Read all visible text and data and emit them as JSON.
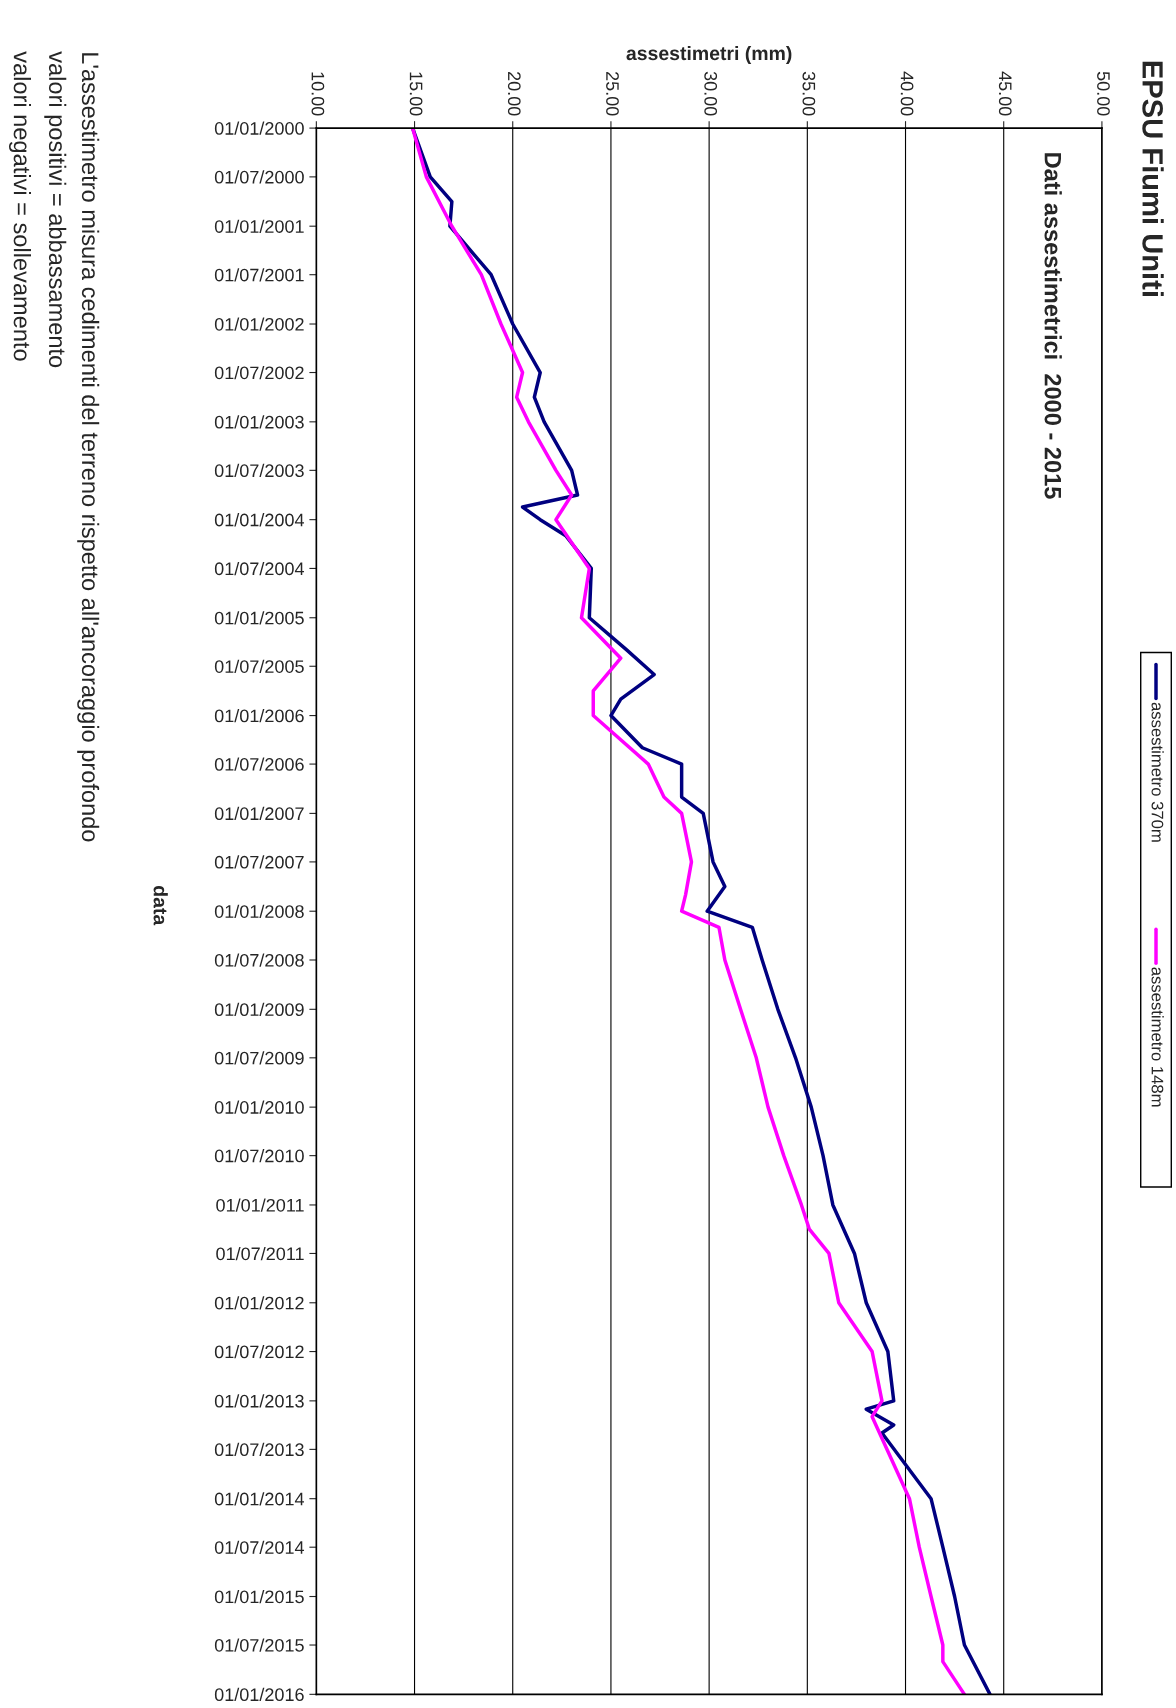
{
  "chart_data": {
    "type": "line",
    "orientation": "horizontal",
    "title": "EPSU Fiumi Uniti",
    "subtitle": "Dati assestimetrici  2000 - 2015",
    "xlabel": "assestimetri (mm)",
    "ylabel": "data",
    "annotations": [
      "L'assestimetro misura cedimenti del terreno rispetto all'ancoraggio profondo",
      "valori positivi = abbassamento",
      "valori negativi = sollevamento"
    ],
    "xlim": [
      10,
      50
    ],
    "xticks": [
      {
        "value": 10,
        "label": "10.00"
      },
      {
        "value": 15,
        "label": "15.00"
      },
      {
        "value": 20,
        "label": "20.00"
      },
      {
        "value": 25,
        "label": "25.00"
      },
      {
        "value": 30,
        "label": "30.00"
      },
      {
        "value": 35,
        "label": "35.00"
      },
      {
        "value": 40,
        "label": "40.00"
      },
      {
        "value": 45,
        "label": "45.00"
      },
      {
        "value": 50,
        "label": "50.00"
      }
    ],
    "ylim": [
      "2016-01-01",
      "2000-01-01"
    ],
    "yticks": [
      {
        "value": "2000-01-01",
        "label": "01/01/2000"
      },
      {
        "value": "2000-07-01",
        "label": "01/07/2000"
      },
      {
        "value": "2001-01-01",
        "label": "01/01/2001"
      },
      {
        "value": "2001-07-01",
        "label": "01/07/2001"
      },
      {
        "value": "2002-01-01",
        "label": "01/01/2002"
      },
      {
        "value": "2002-07-01",
        "label": "01/07/2002"
      },
      {
        "value": "2003-01-01",
        "label": "01/01/2003"
      },
      {
        "value": "2003-07-01",
        "label": "01/07/2003"
      },
      {
        "value": "2004-01-01",
        "label": "01/01/2004"
      },
      {
        "value": "2004-07-01",
        "label": "01/07/2004"
      },
      {
        "value": "2005-01-01",
        "label": "01/01/2005"
      },
      {
        "value": "2005-07-01",
        "label": "01/07/2005"
      },
      {
        "value": "2006-01-01",
        "label": "01/01/2006"
      },
      {
        "value": "2006-07-01",
        "label": "01/07/2006"
      },
      {
        "value": "2007-01-01",
        "label": "01/01/2007"
      },
      {
        "value": "2007-07-01",
        "label": "01/07/2007"
      },
      {
        "value": "2008-01-01",
        "label": "01/01/2008"
      },
      {
        "value": "2008-07-01",
        "label": "01/07/2008"
      },
      {
        "value": "2009-01-01",
        "label": "01/01/2009"
      },
      {
        "value": "2009-07-01",
        "label": "01/07/2009"
      },
      {
        "value": "2010-01-01",
        "label": "01/01/2010"
      },
      {
        "value": "2010-07-01",
        "label": "01/07/2010"
      },
      {
        "value": "2011-01-01",
        "label": "01/01/2011"
      },
      {
        "value": "2011-07-01",
        "label": "01/07/2011"
      },
      {
        "value": "2012-01-01",
        "label": "01/01/2012"
      },
      {
        "value": "2012-07-01",
        "label": "01/07/2012"
      },
      {
        "value": "2013-01-01",
        "label": "01/01/2013"
      },
      {
        "value": "2013-07-01",
        "label": "01/07/2013"
      },
      {
        "value": "2014-01-01",
        "label": "01/01/2014"
      },
      {
        "value": "2014-07-01",
        "label": "01/07/2014"
      },
      {
        "value": "2015-01-01",
        "label": "01/01/2015"
      },
      {
        "value": "2015-07-01",
        "label": "01/07/2015"
      },
      {
        "value": "2016-01-01",
        "label": "01/01/2016"
      }
    ],
    "grid": "x",
    "legend": "right",
    "marker": "none",
    "line_style": "solid",
    "series": [
      {
        "name": "assestimetro 370m",
        "color": "#000080",
        "x": [
          "2000-01-01",
          "2000-07-01",
          "2000-10-01",
          "2001-01-01",
          "2001-07-01",
          "2002-01-01",
          "2002-07-01",
          "2002-10-01",
          "2003-01-01",
          "2003-07-01",
          "2003-10-01",
          "2003-11-15",
          "2004-01-01",
          "2004-03-01",
          "2004-07-01",
          "2005-01-01",
          "2005-05-01",
          "2005-08-01",
          "2005-11-01",
          "2006-01-01",
          "2006-05-01",
          "2006-07-01",
          "2006-11-01",
          "2007-01-01",
          "2007-07-01",
          "2007-10-01",
          "2008-01-01",
          "2008-03-01",
          "2008-07-01",
          "2009-01-01",
          "2009-07-01",
          "2010-01-01",
          "2010-07-01",
          "2011-01-01",
          "2011-07-01",
          "2012-01-01",
          "2012-07-01",
          "2013-01-01",
          "2013-02-01",
          "2013-04-01",
          "2013-05-01",
          "2014-01-01",
          "2014-04-01",
          "2014-07-01",
          "2015-01-01",
          "2015-07-01",
          "2016-01-01"
        ],
        "values": [
          14.9,
          15.8,
          16.9,
          16.8,
          18.9,
          20.0,
          21.4,
          21.1,
          21.6,
          23.0,
          23.3,
          20.5,
          21.4,
          22.7,
          24.0,
          23.9,
          25.8,
          27.2,
          25.5,
          25.0,
          26.6,
          28.6,
          28.6,
          29.7,
          30.2,
          30.8,
          29.9,
          32.2,
          32.7,
          33.5,
          34.4,
          35.2,
          35.8,
          36.3,
          37.4,
          38.0,
          39.1,
          39.4,
          38.0,
          39.4,
          38.8,
          41.3,
          41.6,
          41.9,
          42.5,
          43.0,
          44.3
        ]
      },
      {
        "name": "assestimetro 148m",
        "color": "#ff00ff",
        "x": [
          "2000-01-01",
          "2000-07-01",
          "2001-01-01",
          "2001-07-01",
          "2002-01-01",
          "2002-07-01",
          "2002-10-01",
          "2003-01-01",
          "2003-07-01",
          "2003-10-01",
          "2004-01-01",
          "2004-07-01",
          "2005-01-01",
          "2005-06-01",
          "2005-10-01",
          "2006-01-01",
          "2006-07-01",
          "2006-11-01",
          "2007-01-01",
          "2007-07-01",
          "2007-11-01",
          "2008-01-01",
          "2008-03-01",
          "2008-07-01",
          "2009-01-01",
          "2009-07-01",
          "2010-01-01",
          "2010-07-01",
          "2011-01-01",
          "2011-04-01",
          "2011-07-01",
          "2012-01-01",
          "2012-07-01",
          "2013-01-01",
          "2013-03-01",
          "2014-01-01",
          "2014-07-01",
          "2015-01-01",
          "2015-07-01",
          "2015-09-01",
          "2016-01-01"
        ],
        "values": [
          14.9,
          15.6,
          16.9,
          18.4,
          19.4,
          20.5,
          20.2,
          20.8,
          22.2,
          23.0,
          22.2,
          23.9,
          23.5,
          25.5,
          24.1,
          24.1,
          26.9,
          27.7,
          28.6,
          29.1,
          28.8,
          28.6,
          30.5,
          30.8,
          31.6,
          32.4,
          33.0,
          33.8,
          34.7,
          35.1,
          36.1,
          36.6,
          38.3,
          38.8,
          38.3,
          40.2,
          40.7,
          41.3,
          41.9,
          41.9,
          43.0
        ]
      }
    ]
  }
}
